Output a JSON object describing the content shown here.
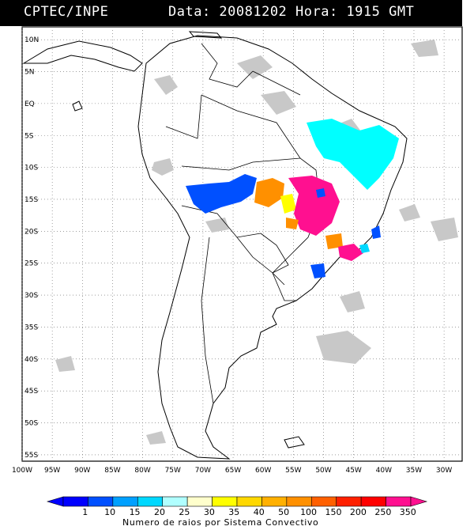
{
  "header": {
    "agency": "CPTEC/INPE",
    "datetime": "Data: 20081202  Hora: 1915 GMT"
  },
  "map": {
    "lat_ticks": [
      "10N",
      "5N",
      "EQ",
      "5S",
      "10S",
      "15S",
      "20S",
      "25S",
      "30S",
      "35S",
      "40S",
      "45S",
      "50S",
      "55S"
    ],
    "lon_ticks": [
      "100W",
      "95W",
      "90W",
      "85W",
      "80W",
      "75W",
      "70W",
      "65W",
      "60W",
      "55W",
      "50W",
      "45W",
      "40W",
      "35W",
      "30W"
    ],
    "lon_range": [
      -100,
      -27
    ],
    "lat_range": [
      -56,
      12
    ],
    "grid": "dotted"
  },
  "colorbar": {
    "title": "Numero de raios por Sistema Convectivo",
    "labels": [
      "1",
      "10",
      "15",
      "20",
      "25",
      "30",
      "35",
      "40",
      "50",
      "100",
      "150",
      "200",
      "250",
      "350"
    ],
    "colors": [
      "#0000ff",
      "#0050ff",
      "#00a0ff",
      "#00d8ff",
      "#b0ffff",
      "#ffffcc",
      "#ffff00",
      "#ffd800",
      "#ffb000",
      "#ff9000",
      "#ff6000",
      "#ff2000",
      "#ff0000",
      "#ff1090"
    ]
  }
}
